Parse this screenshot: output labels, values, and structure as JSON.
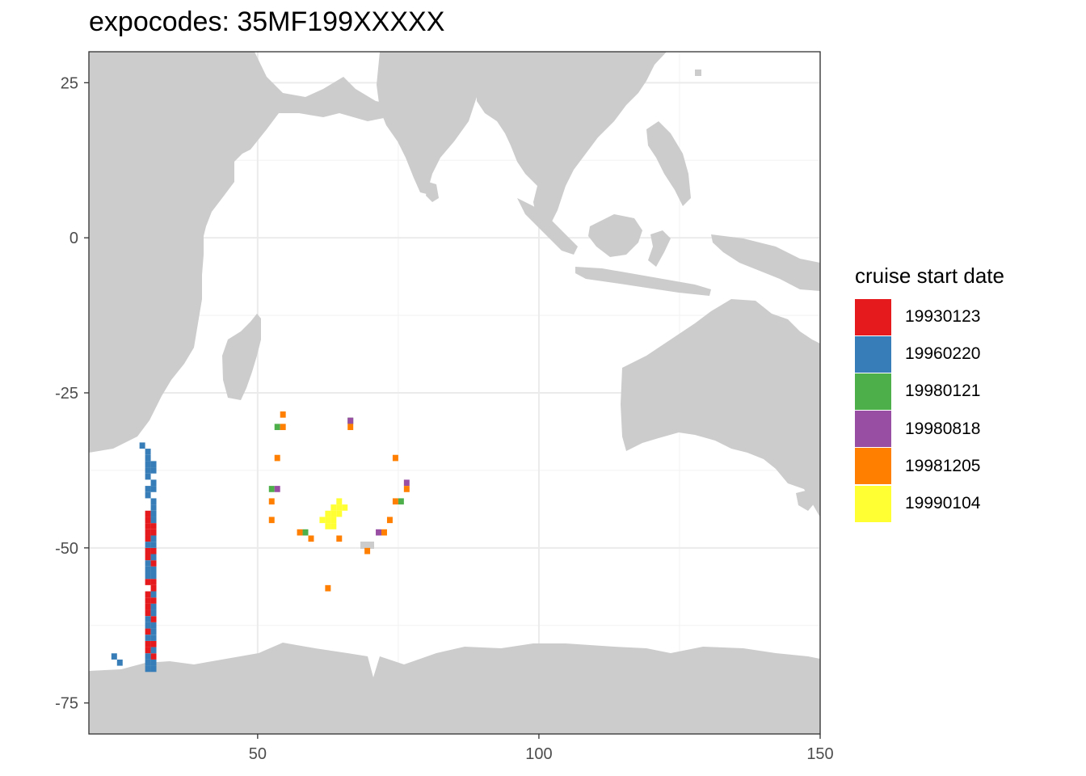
{
  "chart_data": {
    "type": "heatmap",
    "title": "expocodes: 35MF199XXXXX",
    "xlabel": "",
    "ylabel": "",
    "xlim": [
      20,
      150
    ],
    "ylim": [
      -80,
      30
    ],
    "x_ticks": [
      50,
      100,
      150
    ],
    "y_ticks": [
      25,
      0,
      -25,
      -50,
      -75
    ],
    "x_tick_labels": [
      "50",
      "100",
      "150"
    ],
    "y_tick_labels": [
      "25",
      "0",
      "-25",
      "-50",
      "-75"
    ],
    "grid": true,
    "background_map": "land masks (grey) of Indian Ocean region",
    "cell_size_deg": 1,
    "legend": {
      "title": "cruise start date",
      "position": "right",
      "entries": [
        {
          "label": "19930123",
          "color": "#E41A1C"
        },
        {
          "label": "19960220",
          "color": "#377EB8"
        },
        {
          "label": "19980121",
          "color": "#4DAF4A"
        },
        {
          "label": "19980818",
          "color": "#984EA3"
        },
        {
          "label": "19981205",
          "color": "#FF7F00"
        },
        {
          "label": "19990104",
          "color": "#FFFF33"
        }
      ]
    },
    "series": [
      {
        "name": "19930123",
        "color": "#E41A1C",
        "points": [
          [
            30.5,
            -44.5
          ],
          [
            30.5,
            -45.5
          ],
          [
            30.5,
            -46.5
          ],
          [
            30.5,
            -47.5
          ],
          [
            30.5,
            -48.5
          ],
          [
            31.5,
            -47.5
          ],
          [
            30.5,
            -50.5
          ],
          [
            30.5,
            -51.5
          ],
          [
            31.5,
            -52.5
          ],
          [
            30.5,
            -55.5
          ],
          [
            31.5,
            -56.5
          ],
          [
            30.5,
            -57.5
          ],
          [
            30.5,
            -58.5
          ],
          [
            30.5,
            -59.5
          ],
          [
            30.5,
            -60.5
          ],
          [
            31.5,
            -61.5
          ],
          [
            30.5,
            -63.5
          ],
          [
            30.5,
            -65.5
          ],
          [
            30.5,
            -66.5
          ],
          [
            31.5,
            -67.5
          ],
          [
            31.5,
            -46.5
          ],
          [
            31.5,
            -50.5
          ],
          [
            31.5,
            -55.5
          ],
          [
            31.5,
            -58.5
          ],
          [
            31.5,
            -65.5
          ]
        ]
      },
      {
        "name": "19960220",
        "color": "#377EB8",
        "points": [
          [
            29.5,
            -33.5
          ],
          [
            30.5,
            -34.5
          ],
          [
            30.5,
            -35.5
          ],
          [
            30.5,
            -36.5
          ],
          [
            31.5,
            -36.5
          ],
          [
            30.5,
            -37.5
          ],
          [
            31.5,
            -37.5
          ],
          [
            30.5,
            -38.5
          ],
          [
            31.5,
            -39.5
          ],
          [
            31.5,
            -40.5
          ],
          [
            30.5,
            -40.5
          ],
          [
            30.5,
            -41.5
          ],
          [
            31.5,
            -42.5
          ],
          [
            31.5,
            -43.5
          ],
          [
            31.5,
            -44.5
          ],
          [
            31.5,
            -45.5
          ],
          [
            31.5,
            -48.5
          ],
          [
            31.5,
            -49.5
          ],
          [
            30.5,
            -49.5
          ],
          [
            31.5,
            -51.5
          ],
          [
            30.5,
            -52.5
          ],
          [
            30.5,
            -53.5
          ],
          [
            31.5,
            -53.5
          ],
          [
            30.5,
            -54.5
          ],
          [
            31.5,
            -54.5
          ],
          [
            31.5,
            -57.5
          ],
          [
            31.5,
            -59.5
          ],
          [
            31.5,
            -60.5
          ],
          [
            30.5,
            -61.5
          ],
          [
            30.5,
            -62.5
          ],
          [
            31.5,
            -62.5
          ],
          [
            31.5,
            -63.5
          ],
          [
            30.5,
            -64.5
          ],
          [
            31.5,
            -64.5
          ],
          [
            31.5,
            -66.5
          ],
          [
            30.5,
            -67.5
          ],
          [
            30.5,
            -68.5
          ],
          [
            31.5,
            -68.5
          ],
          [
            30.5,
            -69.5
          ],
          [
            31.5,
            -69.5
          ],
          [
            24.5,
            -67.5
          ],
          [
            25.5,
            -68.5
          ]
        ]
      },
      {
        "name": "19980121",
        "color": "#4DAF4A",
        "points": [
          [
            53.5,
            -30.5
          ],
          [
            52.5,
            -40.5
          ],
          [
            58.5,
            -47.5
          ],
          [
            75.5,
            -42.5
          ],
          [
            66.5,
            -29.5
          ]
        ]
      },
      {
        "name": "19980818",
        "color": "#984EA3",
        "points": [
          [
            66.5,
            -29.5
          ],
          [
            53.5,
            -40.5
          ],
          [
            76.5,
            -39.5
          ],
          [
            71.5,
            -47.5
          ]
        ]
      },
      {
        "name": "19981205",
        "color": "#FF7F00",
        "points": [
          [
            54.5,
            -28.5
          ],
          [
            54.5,
            -30.5
          ],
          [
            66.5,
            -30.5
          ],
          [
            53.5,
            -35.5
          ],
          [
            74.5,
            -35.5
          ],
          [
            76.5,
            -40.5
          ],
          [
            52.5,
            -42.5
          ],
          [
            74.5,
            -42.5
          ],
          [
            52.5,
            -45.5
          ],
          [
            73.5,
            -45.5
          ],
          [
            57.5,
            -47.5
          ],
          [
            72.5,
            -47.5
          ],
          [
            59.5,
            -48.5
          ],
          [
            64.5,
            -48.5
          ],
          [
            69.5,
            -50.5
          ],
          [
            62.5,
            -56.5
          ]
        ]
      },
      {
        "name": "19990104",
        "color": "#FFFF33",
        "points": [
          [
            64.5,
            -42.5
          ],
          [
            63.5,
            -43.5
          ],
          [
            64.5,
            -43.5
          ],
          [
            65.5,
            -43.5
          ],
          [
            62.5,
            -44.5
          ],
          [
            63.5,
            -44.5
          ],
          [
            64.5,
            -44.5
          ],
          [
            61.5,
            -45.5
          ],
          [
            62.5,
            -45.5
          ],
          [
            63.5,
            -45.5
          ],
          [
            62.5,
            -46.5
          ],
          [
            63.5,
            -46.5
          ]
        ]
      }
    ]
  }
}
